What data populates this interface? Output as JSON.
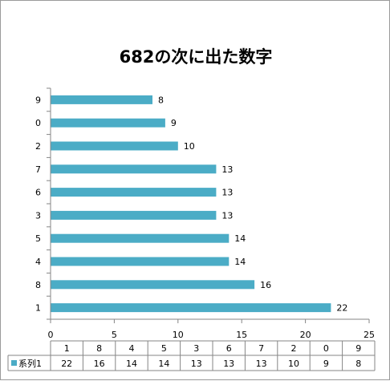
{
  "chart_data": {
    "type": "bar",
    "orientation": "horizontal",
    "title": "682の次に出た数字",
    "categories": [
      "1",
      "8",
      "4",
      "5",
      "3",
      "6",
      "7",
      "2",
      "0",
      "9"
    ],
    "series": [
      {
        "name": "系列1",
        "values": [
          22,
          16,
          14,
          14,
          13,
          13,
          13,
          10,
          9,
          8
        ],
        "color": "#4BACC6"
      }
    ],
    "xlim": [
      0,
      25
    ],
    "x_ticks": [
      0,
      5,
      10,
      15,
      20,
      25
    ],
    "grid": false,
    "data_labels": true,
    "data_table": true
  }
}
